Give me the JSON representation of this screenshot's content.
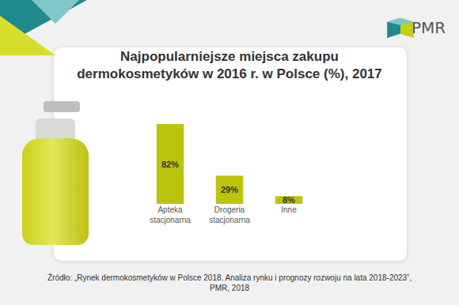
{
  "chart_data": {
    "type": "bar",
    "title": "Najpopularniejsze miejsca zakupu\ndermokosmetyków w 2016 r. w Polsce (%), 2017",
    "categories": [
      "Apteka stacjonarna",
      "Drogeria stacjonarna",
      "Inne"
    ],
    "values": [
      82,
      29,
      8
    ],
    "value_labels": [
      "82%",
      "29%",
      "8%"
    ],
    "data_labels": true,
    "color": "#bcc30c",
    "ylim": [
      0,
      82
    ],
    "tick_labels": "x",
    "grid": false,
    "source": "Źródło: „Rynek dermokosmetyków w Polsce 2018. Analiza rynku i prognozy rozwoju na lata 2018-2023”,\nPMR, 2018",
    "logo": "PMR"
  }
}
